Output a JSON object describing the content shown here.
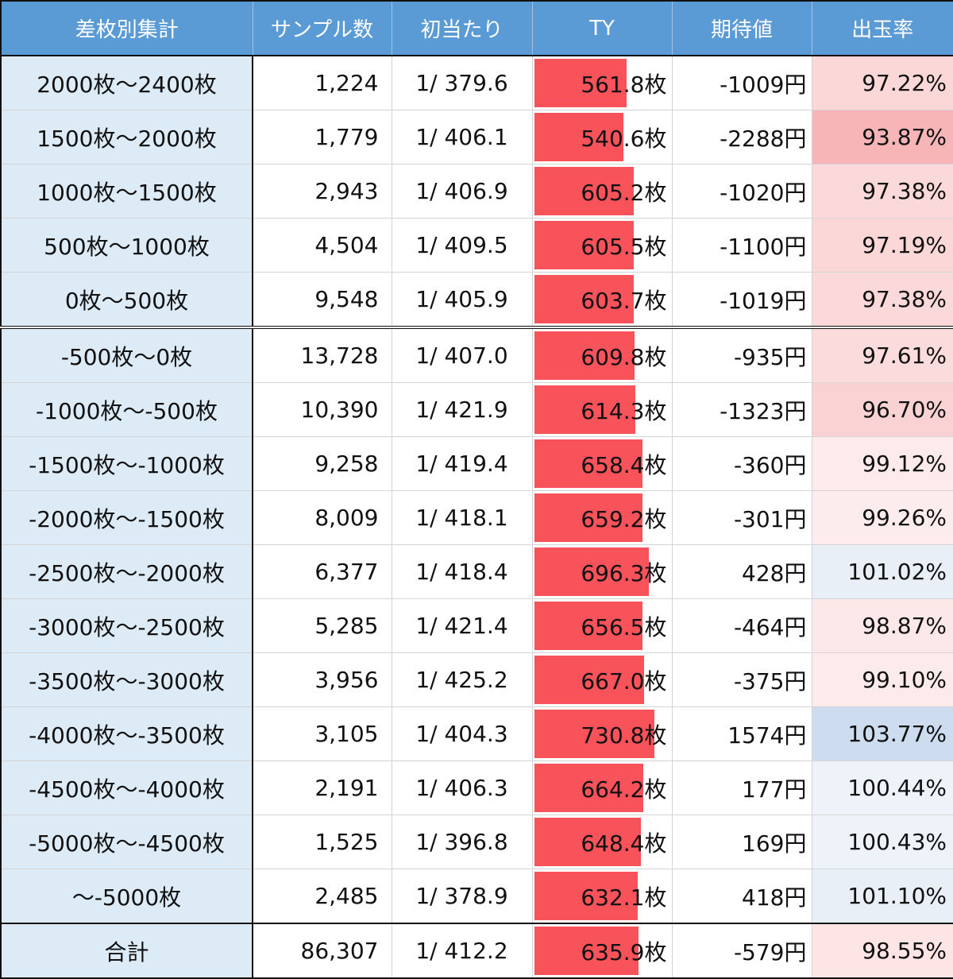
{
  "headers": [
    "差枚別集計",
    "サンプル数",
    "初当たり",
    "TY",
    "期待値",
    "出玉率"
  ],
  "rows": [
    {
      "range": "2000枚〜2400枚",
      "samples": "1,224",
      "prob": "1/ 379.6",
      "ty": "561.8枚",
      "ty_value": 561.8,
      "ev": "-1009円",
      "ev_sign": "neg",
      "rate": "97.22%",
      "rate_value": 97.22
    },
    {
      "range": "1500枚〜2000枚",
      "samples": "1,779",
      "prob": "1/ 406.1",
      "ty": "540.6枚",
      "ty_value": 540.6,
      "ev": "-2288円",
      "ev_sign": "neg",
      "rate": "93.87%",
      "rate_value": 93.87
    },
    {
      "range": "1000枚〜1500枚",
      "samples": "2,943",
      "prob": "1/ 406.9",
      "ty": "605.2枚",
      "ty_value": 605.2,
      "ev": "-1020円",
      "ev_sign": "neg",
      "rate": "97.38%",
      "rate_value": 97.38
    },
    {
      "range": "500枚〜1000枚",
      "samples": "4,504",
      "prob": "1/ 409.5",
      "ty": "605.5枚",
      "ty_value": 605.5,
      "ev": "-1100円",
      "ev_sign": "neg",
      "rate": "97.19%",
      "rate_value": 97.19
    },
    {
      "range": "0枚〜500枚",
      "samples": "9,548",
      "prob": "1/ 405.9",
      "ty": "603.7枚",
      "ty_value": 603.7,
      "ev": "-1019円",
      "ev_sign": "neg",
      "rate": "97.38%",
      "rate_value": 97.38
    },
    {
      "range": "-500枚〜0枚",
      "samples": "13,728",
      "prob": "1/ 407.0",
      "ty": "609.8枚",
      "ty_value": 609.8,
      "ev": "-935円",
      "ev_sign": "neg",
      "rate": "97.61%",
      "rate_value": 97.61
    },
    {
      "range": "-1000枚〜-500枚",
      "samples": "10,390",
      "prob": "1/ 421.9",
      "ty": "614.3枚",
      "ty_value": 614.3,
      "ev": "-1323円",
      "ev_sign": "neg",
      "rate": "96.70%",
      "rate_value": 96.7
    },
    {
      "range": "-1500枚〜-1000枚",
      "samples": "9,258",
      "prob": "1/ 419.4",
      "ty": "658.4枚",
      "ty_value": 658.4,
      "ev": "-360円",
      "ev_sign": "neg",
      "rate": "99.12%",
      "rate_value": 99.12
    },
    {
      "range": "-2000枚〜-1500枚",
      "samples": "8,009",
      "prob": "1/ 418.1",
      "ty": "659.2枚",
      "ty_value": 659.2,
      "ev": "-301円",
      "ev_sign": "neg",
      "rate": "99.26%",
      "rate_value": 99.26
    },
    {
      "range": "-2500枚〜-2000枚",
      "samples": "6,377",
      "prob": "1/ 418.4",
      "ty": "696.3枚",
      "ty_value": 696.3,
      "ev": "428円",
      "ev_sign": "pos",
      "rate": "101.02%",
      "rate_value": 101.02
    },
    {
      "range": "-3000枚〜-2500枚",
      "samples": "5,285",
      "prob": "1/ 421.4",
      "ty": "656.5枚",
      "ty_value": 656.5,
      "ev": "-464円",
      "ev_sign": "neg",
      "rate": "98.87%",
      "rate_value": 98.87
    },
    {
      "range": "-3500枚〜-3000枚",
      "samples": "3,956",
      "prob": "1/ 425.2",
      "ty": "667.0枚",
      "ty_value": 667.0,
      "ev": "-375円",
      "ev_sign": "neg",
      "rate": "99.10%",
      "rate_value": 99.1
    },
    {
      "range": "-4000枚〜-3500枚",
      "samples": "3,105",
      "prob": "1/ 404.3",
      "ty": "730.8枚",
      "ty_value": 730.8,
      "ev": "1574円",
      "ev_sign": "pos",
      "rate": "103.77%",
      "rate_value": 103.77
    },
    {
      "range": "-4500枚〜-4000枚",
      "samples": "2,191",
      "prob": "1/ 406.3",
      "ty": "664.2枚",
      "ty_value": 664.2,
      "ev": "177円",
      "ev_sign": "pos",
      "rate": "100.44%",
      "rate_value": 100.44
    },
    {
      "range": "-5000枚〜-4500枚",
      "samples": "1,525",
      "prob": "1/ 396.8",
      "ty": "648.4枚",
      "ty_value": 648.4,
      "ev": "169円",
      "ev_sign": "pos",
      "rate": "100.43%",
      "rate_value": 100.43
    },
    {
      "range": "〜-5000枚",
      "samples": "2,485",
      "prob": "1/ 378.9",
      "ty": "632.1枚",
      "ty_value": 632.1,
      "ev": "418円",
      "ev_sign": "pos",
      "rate": "101.10%",
      "rate_value": 101.1
    }
  ],
  "total": {
    "range": "合計",
    "samples": "86,307",
    "prob": "1/ 412.2",
    "ty": "635.9枚",
    "ty_value": 635.9,
    "ev": "-579円",
    "ev_sign": "neg",
    "rate": "98.55%",
    "rate_value": 98.55
  },
  "colors": {
    "header_bg": "#5b9bd5",
    "range_bg": "#ddebf7",
    "ty_bar": "#f8525b",
    "negative_text": "#e8000b",
    "positive_text": "#1414d6",
    "rate_low": "#f8b4b6",
    "rate_high": "#cddcee"
  }
}
